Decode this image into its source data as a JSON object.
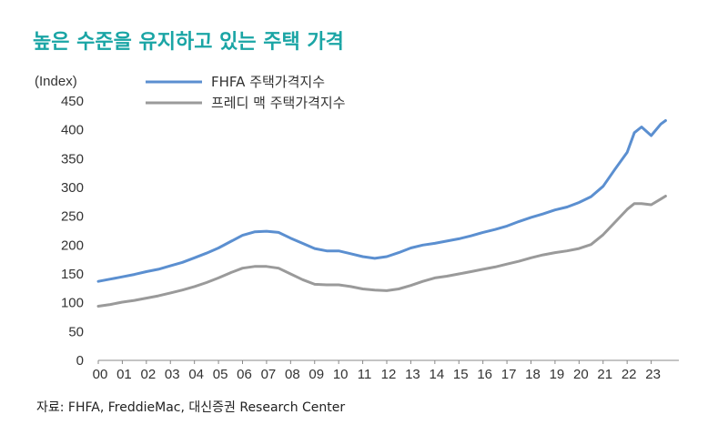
{
  "title": "높은 수준을 유지하고 있는 주택 가격",
  "source": "자료: FHFA, FreddieMac, 대신증권 Research Center",
  "chart_data": {
    "type": "line",
    "title": "높은 수준을 유지하고 있는 주택 가격",
    "ylabel": "(Index)",
    "ylim": [
      0,
      450
    ],
    "y_ticks": [
      0,
      50,
      100,
      150,
      200,
      250,
      300,
      350,
      400,
      450
    ],
    "x_tick_labels": [
      "00",
      "01",
      "02",
      "03",
      "04",
      "05",
      "06",
      "07",
      "08",
      "09",
      "10",
      "11",
      "12",
      "13",
      "14",
      "15",
      "16",
      "17",
      "18",
      "19",
      "20",
      "21",
      "22",
      "23"
    ],
    "x_unit": "year (2000–2023)",
    "grid": false,
    "legend_position": "top",
    "series": [
      {
        "name": "FHFA 주택가격지수",
        "color": "#5b8fd0",
        "x": [
          2000.0,
          2000.5,
          2001.0,
          2001.5,
          2002.0,
          2002.5,
          2003.0,
          2003.5,
          2004.0,
          2004.5,
          2005.0,
          2005.5,
          2006.0,
          2006.5,
          2007.0,
          2007.5,
          2008.0,
          2008.5,
          2009.0,
          2009.5,
          2010.0,
          2010.5,
          2011.0,
          2011.5,
          2012.0,
          2012.5,
          2013.0,
          2013.5,
          2014.0,
          2014.5,
          2015.0,
          2015.5,
          2016.0,
          2016.5,
          2017.0,
          2017.5,
          2018.0,
          2018.5,
          2019.0,
          2019.5,
          2020.0,
          2020.5,
          2021.0,
          2021.5,
          2022.0,
          2022.3,
          2022.6,
          2023.0,
          2023.4,
          2023.6
        ],
        "values": [
          137,
          141,
          145,
          149,
          154,
          158,
          164,
          170,
          178,
          186,
          195,
          206,
          217,
          223,
          224,
          222,
          212,
          203,
          194,
          190,
          190,
          185,
          180,
          177,
          180,
          187,
          195,
          200,
          203,
          207,
          211,
          216,
          222,
          227,
          233,
          241,
          248,
          254,
          261,
          266,
          274,
          284,
          302,
          332,
          361,
          395,
          405,
          390,
          410,
          416
        ]
      },
      {
        "name": "프레디 맥 주택가격지수",
        "color": "#9a9a9a",
        "x": [
          2000.0,
          2000.5,
          2001.0,
          2001.5,
          2002.0,
          2002.5,
          2003.0,
          2003.5,
          2004.0,
          2004.5,
          2005.0,
          2005.5,
          2006.0,
          2006.5,
          2007.0,
          2007.5,
          2008.0,
          2008.5,
          2009.0,
          2009.5,
          2010.0,
          2010.5,
          2011.0,
          2011.5,
          2012.0,
          2012.5,
          2013.0,
          2013.5,
          2014.0,
          2014.5,
          2015.0,
          2015.5,
          2016.0,
          2016.5,
          2017.0,
          2017.5,
          2018.0,
          2018.5,
          2019.0,
          2019.5,
          2020.0,
          2020.5,
          2021.0,
          2021.5,
          2022.0,
          2022.3,
          2022.6,
          2023.0,
          2023.4,
          2023.6
        ],
        "values": [
          94,
          97,
          101,
          104,
          108,
          112,
          117,
          122,
          128,
          135,
          143,
          152,
          160,
          163,
          163,
          160,
          150,
          140,
          132,
          131,
          131,
          128,
          124,
          122,
          121,
          124,
          130,
          137,
          143,
          146,
          150,
          154,
          158,
          162,
          167,
          172,
          178,
          183,
          187,
          190,
          194,
          201,
          218,
          240,
          262,
          272,
          272,
          270,
          280,
          285
        ]
      }
    ]
  }
}
